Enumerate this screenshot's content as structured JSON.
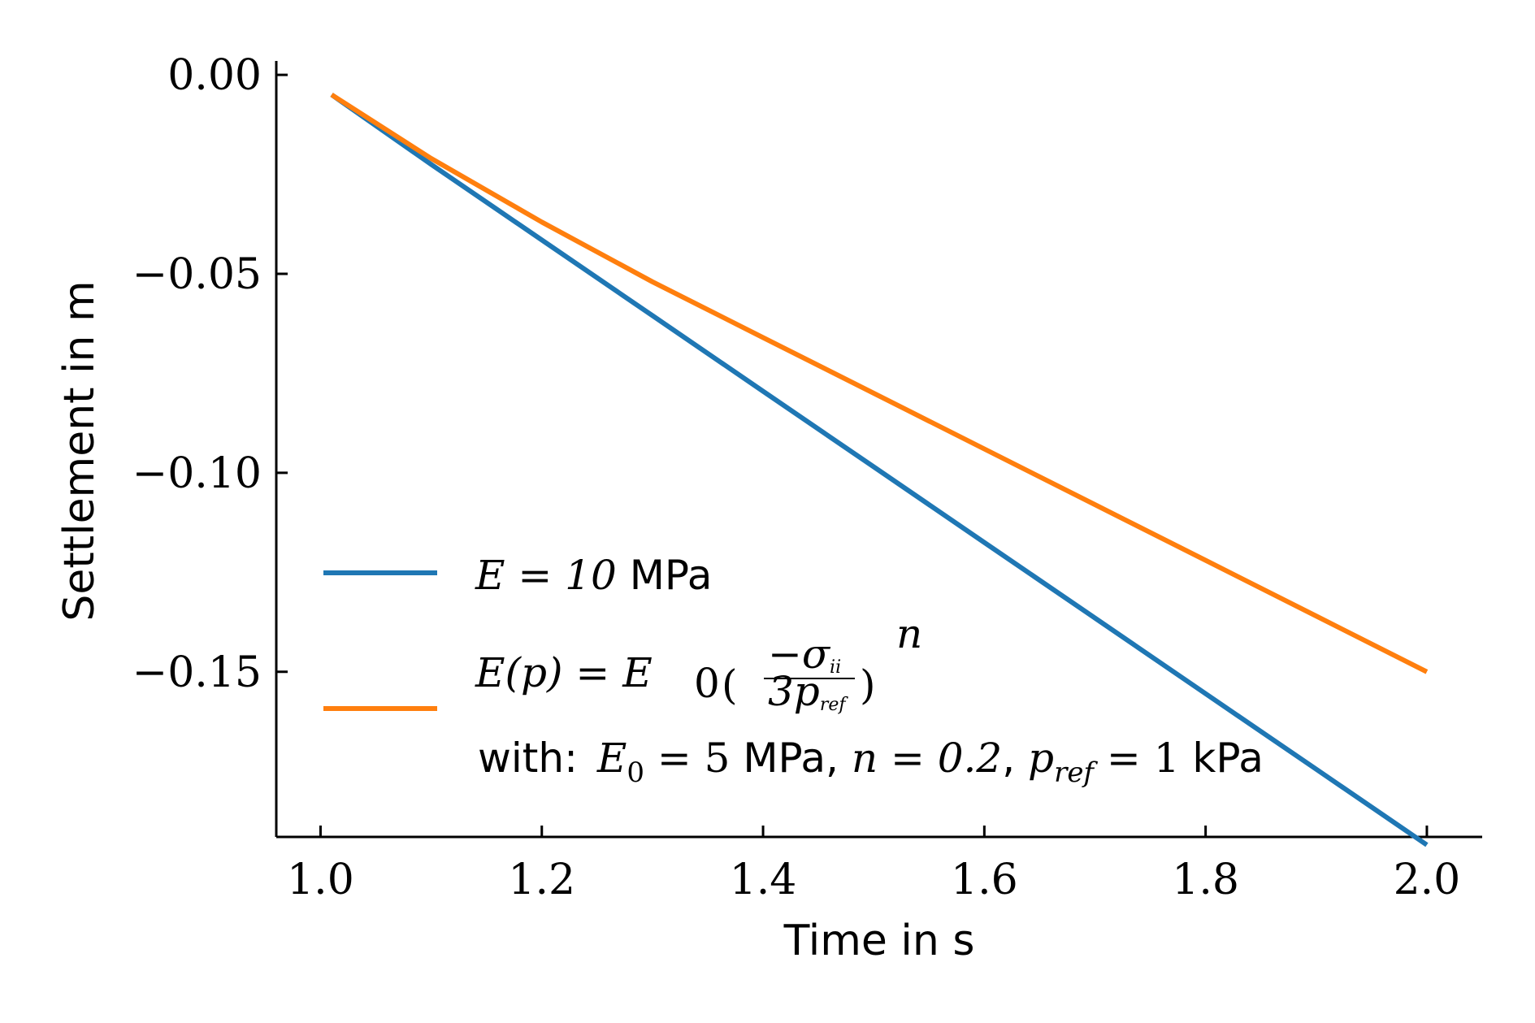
{
  "chart_data": {
    "type": "line",
    "title": "",
    "xlabel": "Time in s",
    "ylabel": "Settlement in m",
    "xlim": [
      0.96,
      2.05
    ],
    "ylim": [
      -0.1915,
      0.0035
    ],
    "xticks": [
      1.0,
      1.2,
      1.4,
      1.6,
      1.8,
      2.0
    ],
    "xtick_labels": [
      "1.0",
      "1.2",
      "1.4",
      "1.6",
      "1.8",
      "2.0"
    ],
    "yticks": [
      0.0,
      -0.05,
      -0.1,
      -0.15
    ],
    "ytick_labels": [
      "0.00",
      "−0.05",
      "−0.10",
      "−0.15"
    ],
    "grid": false,
    "legend_position": "lower-left",
    "series": [
      {
        "name": "E = 10 MPa",
        "color": "#1f77b4",
        "x": [
          1.01,
          1.1,
          1.2,
          1.3,
          1.4,
          1.5,
          1.6,
          1.7,
          1.8,
          1.9,
          2.0
        ],
        "y": [
          -0.005,
          -0.0225,
          -0.0415,
          -0.0605,
          -0.0795,
          -0.0985,
          -0.1175,
          -0.1365,
          -0.1555,
          -0.1745,
          -0.1935
        ]
      },
      {
        "name": "E(p) = E0 ((−σii)/(3pref))^n",
        "name_line2": "with: E0 = 5 MPa, n = 0.2, pref = 1 kPa",
        "color": "#ff7f0e",
        "x": [
          1.01,
          1.1,
          1.2,
          1.3,
          1.4,
          1.5,
          1.6,
          1.7,
          1.8,
          1.9,
          2.0
        ],
        "y": [
          -0.005,
          -0.021,
          -0.037,
          -0.052,
          -0.066,
          -0.08,
          -0.094,
          -0.108,
          -0.122,
          -0.136,
          -0.15
        ]
      }
    ]
  },
  "legend": {
    "entry1": {
      "math": "E = 10",
      "unit": " MPa"
    },
    "entry2": {
      "lhs": "E(p) = E",
      "sub0": "0",
      "frac_num": "−σ",
      "frac_num_sub": "ii",
      "frac_den": "3p",
      "frac_den_sub": "ref",
      "exp": "n",
      "with_prefix": "with: ",
      "with_e0": "E",
      "with_e0_sub": "0",
      "with_e0_val": " = 5",
      "with_mpa": " MPa, ",
      "with_n": "n = 0.2",
      "with_comma": ", ",
      "with_p": "p",
      "with_p_sub": "ref",
      "with_p_val": " = 1",
      "with_kpa": " kPa"
    }
  }
}
